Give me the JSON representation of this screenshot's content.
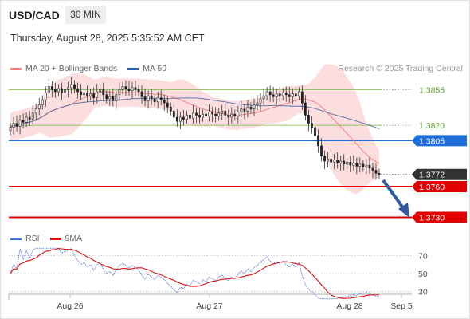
{
  "header": {
    "symbol": "USD/CAD",
    "timeframe": "30 MIN",
    "datetime": "Thursday, August 28, 2025 5:35:52 AM CET"
  },
  "legend_main": [
    {
      "label": "MA 20 + Bollinger Bands",
      "color": "#f08080"
    },
    {
      "label": "MA 50",
      "color": "#2a5caa"
    }
  ],
  "credit": "Research © 2025 Trading Central",
  "legend_rsi": [
    {
      "label": "RSI",
      "color": "#4a6fd8"
    },
    {
      "label": "9MA",
      "color": "#dd1111"
    }
  ],
  "chart_data": {
    "type": "candlestick",
    "price_range": [
      1.3716,
      1.388
    ],
    "x_ticks": [
      "Aug 26",
      "Aug 27",
      "Aug 28",
      "Sep 5"
    ],
    "levels": [
      {
        "value": 1.3855,
        "label": "1.3855",
        "color": "#8dc05a",
        "style": "green-text"
      },
      {
        "value": 1.382,
        "label": "1.3820",
        "color": "#8dc05a",
        "style": "green-text"
      },
      {
        "value": 1.3805,
        "label": "1.3805",
        "color": "#1e6fd9",
        "style": "blue-tag"
      },
      {
        "value": 1.3772,
        "label": "1.3772",
        "color": "#333333",
        "style": "dark-tag"
      },
      {
        "value": 1.376,
        "label": "1.3760",
        "color": "#e00000",
        "style": "red-tag"
      },
      {
        "value": 1.373,
        "label": "1.3730",
        "color": "#e00000",
        "style": "red-tag"
      }
    ],
    "closes": [
      1.3818,
      1.3822,
      1.3819,
      1.3825,
      1.3823,
      1.3828,
      1.3826,
      1.3832,
      1.3836,
      1.384,
      1.3845,
      1.3852,
      1.3858,
      1.3855,
      1.3853,
      1.3856,
      1.3852,
      1.3855,
      1.3857,
      1.386,
      1.3856,
      1.3853,
      1.385,
      1.3852,
      1.3849,
      1.3851,
      1.3847,
      1.3853,
      1.3855,
      1.385,
      1.3846,
      1.3848,
      1.3844,
      1.385,
      1.3855,
      1.3858,
      1.3856,
      1.3854,
      1.3857,
      1.3855,
      1.3853,
      1.3848,
      1.3844,
      1.3849,
      1.3846,
      1.3843,
      1.3847,
      1.3845,
      1.3842,
      1.3838,
      1.3834,
      1.3828,
      1.3824,
      1.3828,
      1.3826,
      1.383,
      1.3827,
      1.3832,
      1.383,
      1.3828,
      1.3831,
      1.3829,
      1.3833,
      1.3831,
      1.3829,
      1.3832,
      1.3834,
      1.383,
      1.3828,
      1.3831,
      1.3829,
      1.3833,
      1.3836,
      1.3834,
      1.3838,
      1.3836,
      1.384,
      1.3842,
      1.3846,
      1.3849,
      1.3853,
      1.385,
      1.3848,
      1.3851,
      1.3849,
      1.3852,
      1.385,
      1.3848,
      1.3851,
      1.3849,
      1.3853,
      1.3842,
      1.383,
      1.3822,
      1.3818,
      1.381,
      1.38,
      1.379,
      1.3785,
      1.3787,
      1.3784,
      1.3786,
      1.3783,
      1.3785,
      1.3782,
      1.3784,
      1.3781,
      1.3783,
      1.378,
      1.3782,
      1.3779,
      1.3781,
      1.3778,
      1.3776,
      1.3773,
      1.3772
    ],
    "rsi_range": [
      20,
      80
    ],
    "rsi_ticks": [
      70,
      50,
      30
    ]
  }
}
